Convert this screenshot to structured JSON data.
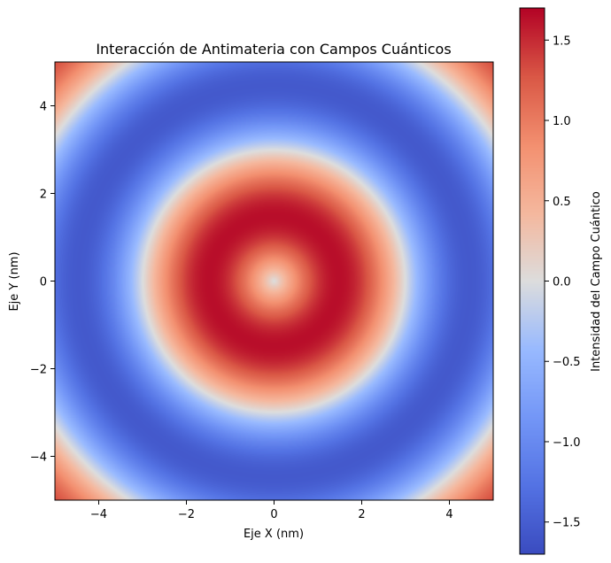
{
  "chart_data": {
    "type": "heatmap",
    "title": "Interacción de Antimateria con Campos Cuánticos",
    "xlabel": "Eje X (nm)",
    "ylabel": "Eje Y (nm)",
    "xlim": [
      -5,
      5
    ],
    "ylim": [
      -5,
      5
    ],
    "x_ticks": [
      -4,
      -2,
      0,
      2,
      4
    ],
    "y_ticks": [
      -4,
      -2,
      0,
      2,
      4
    ],
    "x_tick_labels": [
      "−4",
      "−2",
      "0",
      "2",
      "4"
    ],
    "y_tick_labels": [
      "−4",
      "−2",
      "0",
      "2",
      "4"
    ],
    "colormap": "coolwarm",
    "colorbar": {
      "label": "Intensidad del Campo Cuántico",
      "range": [
        -1.7,
        1.7
      ],
      "ticks": [
        -1.5,
        -1.0,
        -0.5,
        0.0,
        0.5,
        1.0,
        1.5
      ],
      "tick_labels": [
        "−1.5",
        "−1.0",
        "−0.5",
        "0.0",
        "0.5",
        "1.0",
        "1.5"
      ]
    },
    "field": "1.7 * sin(r) * exp(-0.1 * r) / (1 + 0.05 * r)   ... radial pattern, r = sqrt(x^2 + y^2)",
    "grid": false,
    "legend": "none"
  }
}
